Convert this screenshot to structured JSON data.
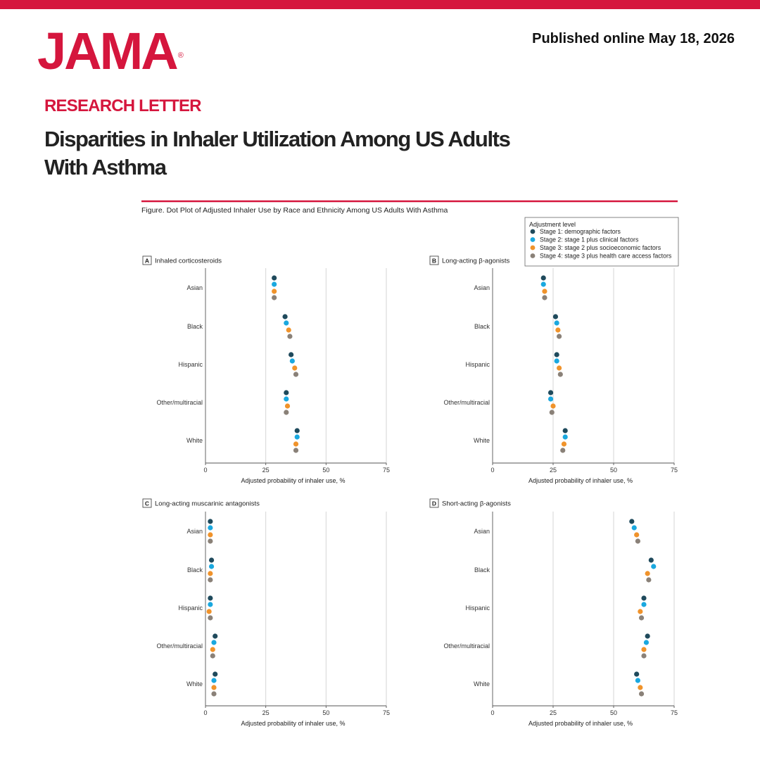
{
  "header": {
    "logo": "JAMA",
    "logo_mark": "®",
    "published": "Published online May 18, 2026",
    "kicker": "RESEARCH LETTER",
    "title_line1": "Disparities in Inhaler Utilization Among US Adults",
    "title_line2": "With Asthma"
  },
  "colors": {
    "brand_red": "#d5163d",
    "stage1": "#1f4a5c",
    "stage2": "#1aa8df",
    "stage3": "#f0932b",
    "stage4": "#8a8178"
  },
  "figure": {
    "caption": "Figure. Dot Plot of Adjusted Inhaler Use by Race and Ethnicity Among US Adults With Asthma",
    "legend_title": "Adjustment level",
    "legend_placement": "top-right"
  },
  "chart_data": [
    {
      "type": "scatter",
      "panel": "A",
      "title": "Inhaled corticosteroids",
      "xlabel": "Adjusted probability of inhaler use, %",
      "xlim": [
        0,
        75
      ],
      "xticks": [
        0,
        25,
        50,
        75
      ],
      "grid": true,
      "categories": [
        "Asian",
        "Black",
        "Hispanic",
        "Other/multiracial",
        "White"
      ],
      "series": [
        {
          "name": "Stage 1: demographic factors",
          "values": [
            28.5,
            33,
            35.5,
            33.5,
            38
          ]
        },
        {
          "name": "Stage 2: stage 1 plus clinical factors",
          "values": [
            28.5,
            33.5,
            36,
            33.5,
            38
          ]
        },
        {
          "name": "Stage 3: stage 2 plus socioeconomic factors",
          "values": [
            28.5,
            34.5,
            37,
            34,
            37.5
          ]
        },
        {
          "name": "Stage 4: stage 3 plus health care access factors",
          "values": [
            28.5,
            35,
            37.5,
            33.5,
            37.5
          ]
        }
      ]
    },
    {
      "type": "scatter",
      "panel": "B",
      "title": "Long-acting β-agonists",
      "xlabel": "Adjusted probability of inhaler use, %",
      "xlim": [
        0,
        75
      ],
      "xticks": [
        0,
        25,
        50,
        75
      ],
      "grid": true,
      "categories": [
        "Asian",
        "Black",
        "Hispanic",
        "Other/multiracial",
        "White"
      ],
      "series": [
        {
          "name": "Stage 1: demographic factors",
          "values": [
            21,
            26,
            26.5,
            24,
            30
          ]
        },
        {
          "name": "Stage 2: stage 1 plus clinical factors",
          "values": [
            21,
            26.5,
            26.5,
            24,
            30
          ]
        },
        {
          "name": "Stage 3: stage 2 plus socioeconomic factors",
          "values": [
            21.5,
            27,
            27.5,
            25,
            29.5
          ]
        },
        {
          "name": "Stage 4: stage 3 plus health care access factors",
          "values": [
            21.5,
            27.5,
            28,
            24.5,
            29
          ]
        }
      ]
    },
    {
      "type": "scatter",
      "panel": "C",
      "title": "Long-acting muscarinic antagonists",
      "xlabel": "Adjusted probability of inhaler use, %",
      "xlim": [
        0,
        75
      ],
      "xticks": [
        0,
        25,
        50,
        75
      ],
      "grid": true,
      "categories": [
        "Asian",
        "Black",
        "Hispanic",
        "Other/multiracial",
        "White"
      ],
      "series": [
        {
          "name": "Stage 1: demographic factors",
          "values": [
            2,
            2.5,
            2,
            4,
            4
          ]
        },
        {
          "name": "Stage 2: stage 1 plus clinical factors",
          "values": [
            2,
            2.5,
            2,
            3.5,
            3.5
          ]
        },
        {
          "name": "Stage 3: stage 2 plus socioeconomic factors",
          "values": [
            2,
            2,
            1.5,
            3,
            3.5
          ]
        },
        {
          "name": "Stage 4: stage 3 plus health care access factors",
          "values": [
            2,
            2,
            2,
            3,
            3.5
          ]
        }
      ]
    },
    {
      "type": "scatter",
      "panel": "D",
      "title": "Short-acting β-agonists",
      "xlabel": "Adjusted probability of inhaler use, %",
      "xlim": [
        0,
        75
      ],
      "xticks": [
        0,
        25,
        50,
        75
      ],
      "grid": true,
      "categories": [
        "Asian",
        "Black",
        "Hispanic",
        "Other/multiracial",
        "White"
      ],
      "series": [
        {
          "name": "Stage 1: demographic factors",
          "values": [
            57.5,
            65.5,
            62.5,
            64,
            59.5
          ]
        },
        {
          "name": "Stage 2: stage 1 plus clinical factors",
          "values": [
            58.5,
            66.5,
            62.5,
            63.5,
            60
          ]
        },
        {
          "name": "Stage 3: stage 2 plus socioeconomic factors",
          "values": [
            59.5,
            64,
            61,
            62.5,
            61
          ]
        },
        {
          "name": "Stage 4: stage 3 plus health care access factors",
          "values": [
            60,
            64.5,
            61.5,
            62.5,
            61.5
          ]
        }
      ]
    }
  ]
}
